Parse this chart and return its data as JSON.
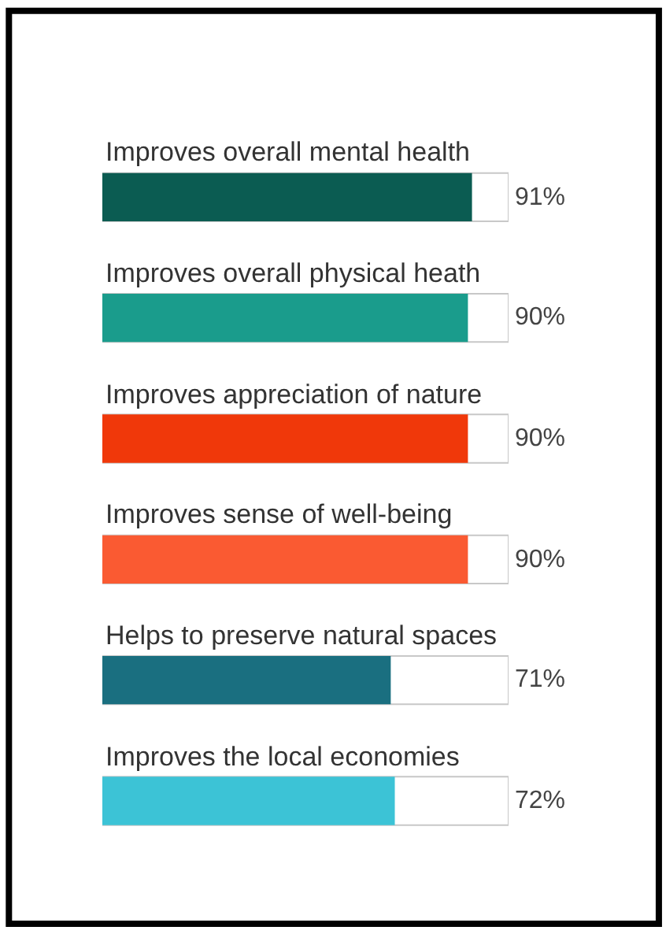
{
  "chart_data": {
    "type": "bar",
    "orientation": "horizontal",
    "categories": [
      "Improves overall mental health",
      "Improves overall physical heath",
      "Improves appreciation of nature",
      "Improves sense of well-being",
      "Helps to preserve natural spaces",
      "Improves the local economies"
    ],
    "values": [
      91,
      90,
      90,
      90,
      71,
      72
    ],
    "colors": [
      "#0b5c52",
      "#1a9c8c",
      "#f0380a",
      "#fa5a32",
      "#1a6f80",
      "#3cc3d6"
    ],
    "value_labels": [
      "91%",
      "90%",
      "90%",
      "90%",
      "71%",
      "72%"
    ],
    "xlim": [
      0,
      100
    ]
  }
}
